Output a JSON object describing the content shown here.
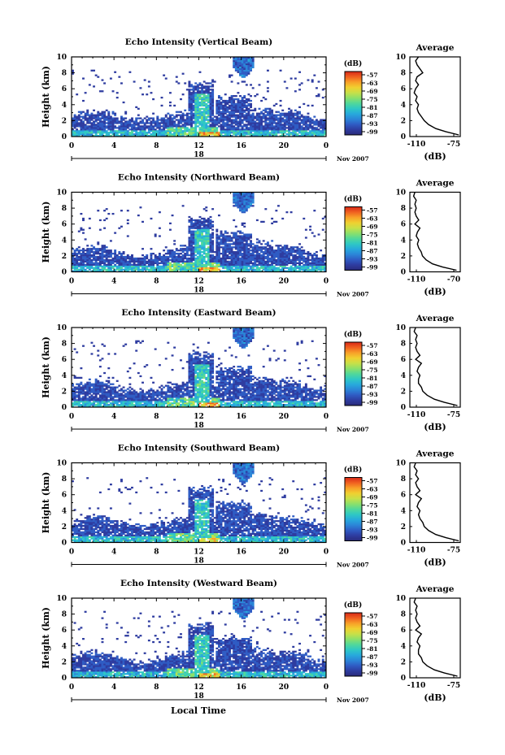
{
  "colors": {
    "colormap": [
      "#2a2a7a",
      "#2e3ca0",
      "#2f5cc4",
      "#2b86d8",
      "#27aadc",
      "#2fc8c4",
      "#52d89a",
      "#8ce06a",
      "#c8e048",
      "#f0d030",
      "#f8a028",
      "#f06020",
      "#d82818"
    ],
    "frame": "#000000",
    "background": "#ffffff"
  },
  "date_label": "Nov 2007",
  "day_label": "18",
  "x_axis_label": "Local Time",
  "y_axis_label": "Height (km)",
  "colorbar_unit": "(dB)",
  "colorbar_ticks": [
    "-57",
    "-63",
    "-69",
    "-75",
    "-81",
    "-87",
    "-93",
    "-99"
  ],
  "average_title": "Average",
  "average_unit": "(dB)",
  "chart_data": [
    {
      "type": "heatmap",
      "title": "Echo Intensity (Vertical Beam)",
      "xlabel": "",
      "ylabel": "Height (km)",
      "x_ticks": [
        "0",
        "4",
        "8",
        "12",
        "16",
        "20",
        "0"
      ],
      "y_ticks": [
        "0",
        "2",
        "4",
        "6",
        "8",
        "10"
      ],
      "xlim": [
        0,
        24
      ],
      "ylim": [
        0,
        10
      ],
      "colorbar": {
        "unit": "(dB)",
        "ticks": [
          -57,
          -63,
          -69,
          -75,
          -81,
          -87,
          -93,
          -99
        ]
      },
      "profile": {
        "title": "Average",
        "xlabel": "(dB)",
        "x_ticks": [
          "-110",
          "-75"
        ],
        "xlim": [
          -110,
          -75
        ],
        "y": [
          0.2,
          0.6,
          1.0,
          1.5,
          2.0,
          2.5,
          3.0,
          3.5,
          4.0,
          4.5,
          5.0,
          5.5,
          6.0,
          6.5,
          7.0,
          7.5,
          8.0,
          8.5,
          9.0,
          9.5,
          10.0
        ],
        "x": [
          -76,
          -85,
          -92,
          -97,
          -100,
          -102,
          -104,
          -105,
          -104,
          -106,
          -105,
          -107,
          -106,
          -104,
          -106,
          -105,
          -101,
          -103,
          -105,
          -106,
          -104
        ]
      }
    },
    {
      "type": "heatmap",
      "title": "Echo Intensity (Northward Beam)",
      "xlabel": "",
      "ylabel": "Height (km)",
      "x_ticks": [
        "0",
        "4",
        "8",
        "12",
        "16",
        "20",
        "0"
      ],
      "y_ticks": [
        "0",
        "2",
        "4",
        "6",
        "8",
        "10"
      ],
      "xlim": [
        0,
        24
      ],
      "ylim": [
        0,
        10
      ],
      "colorbar": {
        "unit": "(dB)",
        "ticks": [
          -57,
          -63,
          -69,
          -75,
          -81,
          -87,
          -93,
          -99
        ]
      },
      "profile": {
        "title": "Average",
        "xlabel": "(dB)",
        "x_ticks": [
          "-110",
          "-70"
        ],
        "xlim": [
          -110,
          -70
        ],
        "y": [
          0.2,
          0.6,
          1.0,
          1.5,
          2.0,
          2.5,
          3.0,
          3.5,
          4.0,
          4.5,
          5.0,
          5.5,
          6.0,
          6.5,
          7.0,
          7.5,
          8.0,
          8.5,
          9.0,
          9.5,
          10.0
        ],
        "x": [
          -73,
          -84,
          -92,
          -97,
          -100,
          -101,
          -103,
          -104,
          -103,
          -105,
          -104,
          -102,
          -106,
          -103,
          -105,
          -106,
          -105,
          -106,
          -105,
          -107,
          -106
        ]
      }
    },
    {
      "type": "heatmap",
      "title": "Echo Intensity (Eastward Beam)",
      "xlabel": "",
      "ylabel": "Height (km)",
      "x_ticks": [
        "0",
        "4",
        "8",
        "12",
        "16",
        "20",
        "0"
      ],
      "y_ticks": [
        "0",
        "2",
        "4",
        "6",
        "8",
        "10"
      ],
      "xlim": [
        0,
        24
      ],
      "ylim": [
        0,
        10
      ],
      "colorbar": {
        "unit": "(dB)",
        "ticks": [
          -57,
          -63,
          -69,
          -75,
          -81,
          -87,
          -93,
          -99
        ]
      },
      "profile": {
        "title": "Average",
        "xlabel": "(dB)",
        "x_ticks": [
          "-110",
          "-75"
        ],
        "xlim": [
          -110,
          -75
        ],
        "y": [
          0.2,
          0.6,
          1.0,
          1.5,
          2.0,
          2.5,
          3.0,
          3.5,
          4.0,
          4.5,
          5.0,
          5.5,
          6.0,
          6.5,
          7.0,
          7.5,
          8.0,
          8.5,
          9.0,
          9.5,
          10.0
        ],
        "x": [
          -77,
          -86,
          -93,
          -98,
          -101,
          -102,
          -104,
          -104,
          -103,
          -105,
          -104,
          -102,
          -106,
          -103,
          -105,
          -106,
          -105,
          -106,
          -105,
          -107,
          -106
        ]
      }
    },
    {
      "type": "heatmap",
      "title": "Echo Intensity (Southward Beam)",
      "xlabel": "",
      "ylabel": "Height (km)",
      "x_ticks": [
        "0",
        "4",
        "8",
        "12",
        "16",
        "20",
        "0"
      ],
      "y_ticks": [
        "0",
        "2",
        "4",
        "6",
        "8",
        "10"
      ],
      "xlim": [
        0,
        24
      ],
      "ylim": [
        0,
        10
      ],
      "colorbar": {
        "unit": "(dB)",
        "ticks": [
          -57,
          -63,
          -69,
          -75,
          -81,
          -87,
          -93,
          -99
        ]
      },
      "profile": {
        "title": "Average",
        "xlabel": "(dB)",
        "x_ticks": [
          "-110",
          "-75"
        ],
        "xlim": [
          -110,
          -75
        ],
        "y": [
          0.2,
          0.6,
          1.0,
          1.5,
          2.0,
          2.5,
          3.0,
          3.5,
          4.0,
          4.5,
          5.0,
          5.5,
          6.0,
          6.5,
          7.0,
          7.5,
          8.0,
          8.5,
          9.0,
          9.5,
          10.0
        ],
        "x": [
          -76,
          -85,
          -92,
          -97,
          -100,
          -101,
          -103,
          -104,
          -103,
          -105,
          -104,
          -102,
          -106,
          -103,
          -105,
          -106,
          -104,
          -106,
          -105,
          -107,
          -106
        ]
      }
    },
    {
      "type": "heatmap",
      "title": "Echo Intensity (Westward Beam)",
      "xlabel": "Local Time",
      "ylabel": "Height (km)",
      "x_ticks": [
        "0",
        "4",
        "8",
        "12",
        "16",
        "20",
        "0"
      ],
      "y_ticks": [
        "0",
        "2",
        "4",
        "6",
        "8",
        "10"
      ],
      "xlim": [
        0,
        24
      ],
      "ylim": [
        0,
        10
      ],
      "colorbar": {
        "unit": "(dB)",
        "ticks": [
          -57,
          -63,
          -69,
          -75,
          -81,
          -87,
          -93,
          -99
        ]
      },
      "profile": {
        "title": "Average",
        "xlabel": "(dB)",
        "x_ticks": [
          "-110",
          "-75"
        ],
        "xlim": [
          -110,
          -75
        ],
        "y": [
          0.2,
          0.6,
          1.0,
          1.5,
          2.0,
          2.5,
          3.0,
          3.5,
          4.0,
          4.5,
          5.0,
          5.5,
          6.0,
          6.5,
          7.0,
          7.5,
          8.0,
          8.5,
          9.0,
          9.5,
          10.0
        ],
        "x": [
          -77,
          -86,
          -93,
          -98,
          -101,
          -102,
          -104,
          -104,
          -103,
          -105,
          -104,
          -102,
          -106,
          -103,
          -105,
          -106,
          -105,
          -106,
          -105,
          -107,
          -106
        ]
      }
    }
  ]
}
